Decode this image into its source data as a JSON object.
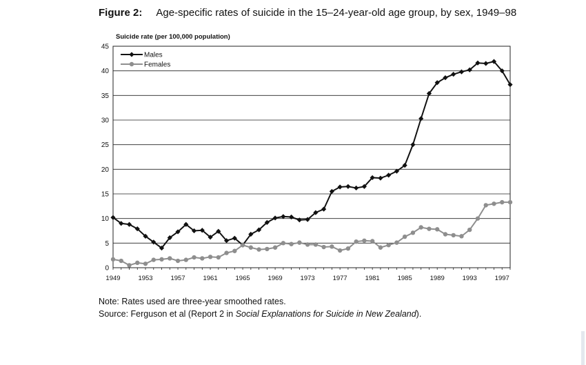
{
  "figure": {
    "label": "Figure 2:",
    "title": "Age-specific rates of suicide in the 15–24-year-old age group, by sex, 1949–98"
  },
  "notes": {
    "note": "Note: Rates used are three-year smoothed rates.",
    "source_prefix": "Source: Ferguson et al (Report 2 in ",
    "source_italic": "Social Explanations for Suicide in New Zealand",
    "source_suffix": ")."
  },
  "chart_data": {
    "type": "line",
    "title": "",
    "ylabel": "Suicide rate (per 100,000 population)",
    "xlabel": "",
    "ylim": [
      0,
      45
    ],
    "xlim": [
      1949,
      1998
    ],
    "yticks": [
      0,
      5,
      10,
      15,
      20,
      25,
      30,
      35,
      40,
      45
    ],
    "xticks": [
      1949,
      1953,
      1957,
      1961,
      1965,
      1969,
      1973,
      1977,
      1981,
      1985,
      1989,
      1993,
      1997
    ],
    "grid": "horizontal",
    "legend": "top-left",
    "x": [
      1949,
      1950,
      1951,
      1952,
      1953,
      1954,
      1955,
      1956,
      1957,
      1958,
      1959,
      1960,
      1961,
      1962,
      1963,
      1964,
      1965,
      1966,
      1967,
      1968,
      1969,
      1970,
      1971,
      1972,
      1973,
      1974,
      1975,
      1976,
      1977,
      1978,
      1979,
      1980,
      1981,
      1982,
      1983,
      1984,
      1985,
      1986,
      1987,
      1988,
      1989,
      1990,
      1991,
      1992,
      1993,
      1994,
      1995,
      1996,
      1997,
      1998
    ],
    "series": [
      {
        "name": "Males",
        "color": "#111111",
        "marker": "diamond",
        "values": [
          10.2,
          9.0,
          8.8,
          7.9,
          6.4,
          5.2,
          4.0,
          6.1,
          7.3,
          8.8,
          7.5,
          7.6,
          6.2,
          7.4,
          5.5,
          6.0,
          4.6,
          6.8,
          7.7,
          9.2,
          10.1,
          10.4,
          10.3,
          9.7,
          9.8,
          11.2,
          11.9,
          15.5,
          16.4,
          16.5,
          16.2,
          16.5,
          18.3,
          18.2,
          18.8,
          19.6,
          20.8,
          25.0,
          30.3,
          35.4,
          37.6,
          38.6,
          39.3,
          39.8,
          40.2,
          41.6,
          41.5,
          41.9,
          40.0,
          37.2
        ]
      },
      {
        "name": "Females",
        "color": "#8e8e8e",
        "marker": "circle",
        "values": [
          1.7,
          1.4,
          0.5,
          1.0,
          0.8,
          1.6,
          1.7,
          1.9,
          1.4,
          1.6,
          2.1,
          1.9,
          2.2,
          2.1,
          3.0,
          3.4,
          4.6,
          4.1,
          3.7,
          3.8,
          4.1,
          5.0,
          4.8,
          5.1,
          4.7,
          4.7,
          4.2,
          4.3,
          3.5,
          3.9,
          5.3,
          5.5,
          5.4,
          4.1,
          4.6,
          5.1,
          6.3,
          7.1,
          8.2,
          7.9,
          7.8,
          6.8,
          6.6,
          6.4,
          7.7,
          10.0,
          12.7,
          13.0,
          13.3,
          13.3
        ]
      }
    ]
  }
}
